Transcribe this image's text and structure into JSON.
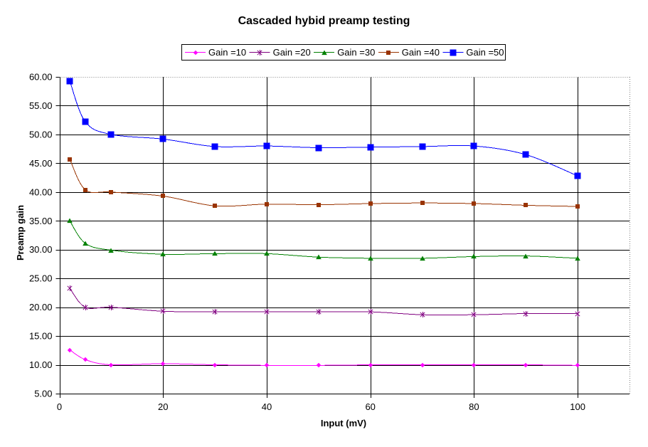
{
  "chart_data": {
    "type": "line",
    "title": "Cascaded hybid preamp testing",
    "xlabel": "Input (mV)",
    "ylabel": "Preamp gain",
    "x": [
      2,
      5,
      10,
      20,
      30,
      40,
      50,
      60,
      70,
      80,
      90,
      100
    ],
    "series": [
      {
        "name": "Gain =10",
        "color": "#FF00FF",
        "marker": "diamond",
        "values": [
          12.6,
          10.9,
          10.0,
          10.2,
          10.0,
          9.9,
          9.9,
          10.0,
          10.0,
          10.0,
          10.0,
          9.9
        ]
      },
      {
        "name": "Gain =20",
        "color": "#800080",
        "marker": "star",
        "values": [
          23.3,
          20.0,
          20.0,
          19.3,
          19.2,
          19.2,
          19.2,
          19.2,
          18.7,
          18.7,
          18.9,
          18.9
        ]
      },
      {
        "name": "Gain =30",
        "color": "#008000",
        "marker": "triangle",
        "values": [
          35.0,
          31.1,
          29.9,
          29.2,
          29.3,
          29.3,
          28.7,
          28.5,
          28.5,
          28.8,
          28.9,
          28.5
        ]
      },
      {
        "name": "Gain =40",
        "color": "#993300",
        "marker": "square-small",
        "values": [
          45.7,
          40.4,
          40.0,
          39.3,
          37.6,
          37.9,
          37.8,
          38.0,
          38.1,
          38.0,
          37.7,
          37.5
        ]
      },
      {
        "name": "Gain =50",
        "color": "#0000FF",
        "marker": "square",
        "values": [
          59.3,
          52.2,
          50.0,
          49.2,
          47.9,
          48.0,
          47.7,
          47.8,
          47.9,
          48.0,
          46.5,
          42.8
        ]
      }
    ],
    "xlim": [
      0,
      110
    ],
    "ylim": [
      5,
      60
    ],
    "x_ticks": [
      0,
      20,
      40,
      60,
      80,
      100
    ],
    "y_ticks": [
      5,
      10,
      15,
      20,
      25,
      30,
      35,
      40,
      45,
      50,
      55,
      60
    ],
    "y_tick_decimals": 2,
    "grid": true,
    "smoothed": true,
    "legend_position": "top",
    "colors": {
      "background": "#FFFFFF",
      "gridline": "#000000",
      "axis": "#000000",
      "plot_border": "#808080",
      "legend_border": "#000000",
      "text": "#000000"
    }
  }
}
